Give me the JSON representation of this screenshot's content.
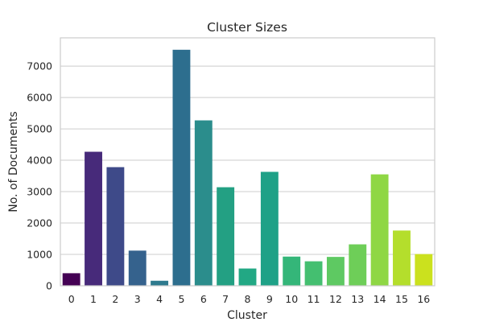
{
  "chart_data": {
    "type": "bar",
    "title": "Cluster Sizes",
    "xlabel": "Cluster",
    "ylabel": "No. of Documents",
    "categories": [
      "0",
      "1",
      "2",
      "3",
      "4",
      "5",
      "6",
      "7",
      "8",
      "9",
      "10",
      "11",
      "12",
      "13",
      "14",
      "15",
      "16"
    ],
    "values": [
      400,
      4270,
      3780,
      1120,
      160,
      7520,
      5270,
      3140,
      550,
      3630,
      930,
      780,
      920,
      1320,
      3550,
      1760,
      1010
    ],
    "ylim": [
      0,
      7900
    ],
    "yticks": [
      0,
      1000,
      2000,
      3000,
      4000,
      5000,
      6000,
      7000
    ],
    "grid": "horizontal",
    "colors": [
      "#440154",
      "#472a7a",
      "#3e4a89",
      "#35628d",
      "#2e7a8e",
      "#2d6e8e",
      "#2b8d8c",
      "#23a083",
      "#22a884",
      "#1fa187",
      "#34b679",
      "#44bf70",
      "#5ec962",
      "#6ece58",
      "#8fd744",
      "#b4de2c",
      "#cbe11e"
    ]
  }
}
